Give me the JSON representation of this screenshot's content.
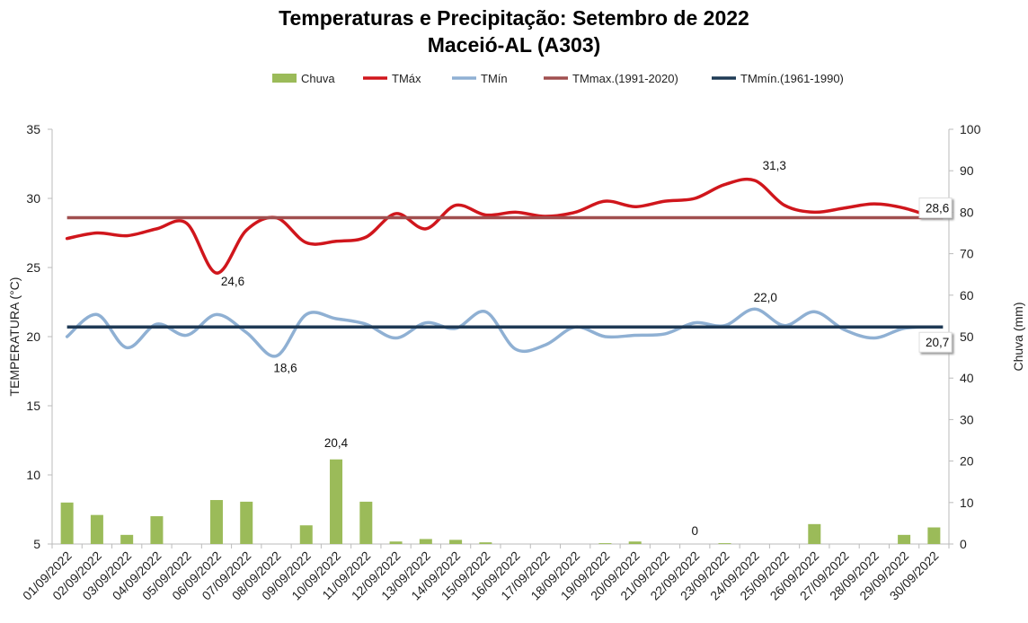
{
  "chart_data": {
    "type": "line+bar",
    "title": "Temperaturas e Precipitação: Setembro de 2022",
    "subtitle": "Maceió-AL (A303)",
    "ylabel": "TEMPERATURA (°C)",
    "y2label": "Chuva (mm)",
    "ylim": [
      5,
      35
    ],
    "yticks": [
      5,
      10,
      15,
      20,
      25,
      30,
      35
    ],
    "y2lim": [
      0,
      100
    ],
    "y2ticks": [
      0,
      10,
      20,
      30,
      40,
      50,
      60,
      70,
      80,
      90,
      100
    ],
    "grid": false,
    "legend_position": "top",
    "categories": [
      "01/09/2022",
      "02/09/2022",
      "03/09/2022",
      "04/09/2022",
      "05/09/2022",
      "06/09/2022",
      "07/09/2022",
      "08/09/2022",
      "09/09/2022",
      "10/09/2022",
      "11/09/2022",
      "12/09/2022",
      "13/09/2022",
      "14/09/2022",
      "15/09/2022",
      "16/09/2022",
      "17/09/2022",
      "18/09/2022",
      "19/09/2022",
      "20/09/2022",
      "21/09/2022",
      "22/09/2022",
      "23/09/2022",
      "24/09/2022",
      "25/09/2022",
      "26/09/2022",
      "27/09/2022",
      "28/09/2022",
      "29/09/2022",
      "30/09/2022"
    ],
    "series": [
      {
        "name": "Chuva",
        "type": "bar",
        "axis": "right",
        "color": "#9bbb59",
        "values": [
          10.0,
          7.0,
          2.2,
          6.7,
          0,
          10.6,
          10.2,
          0,
          4.5,
          20.4,
          10.2,
          0.6,
          1.2,
          1.0,
          0.4,
          0,
          0,
          0,
          0.2,
          0.6,
          0,
          0,
          0.2,
          0,
          0,
          4.8,
          0,
          0,
          2.2,
          4.0
        ]
      },
      {
        "name": "TMáx",
        "type": "line",
        "axis": "left",
        "color": "#d0161c",
        "values": [
          27.1,
          27.5,
          27.3,
          27.8,
          28.2,
          24.6,
          27.7,
          28.6,
          26.8,
          26.9,
          27.2,
          28.9,
          27.8,
          29.5,
          28.8,
          29.0,
          28.7,
          29.0,
          29.8,
          29.4,
          29.8,
          30.0,
          31.0,
          31.3,
          29.5,
          29.0,
          29.3,
          29.6,
          29.3,
          28.6
        ]
      },
      {
        "name": "TMín",
        "type": "line",
        "axis": "left",
        "color": "#8fb0d3",
        "values": [
          20.0,
          21.6,
          19.2,
          20.9,
          20.1,
          21.6,
          20.3,
          18.6,
          21.6,
          21.3,
          20.9,
          19.9,
          21.0,
          20.6,
          21.8,
          19.1,
          19.4,
          20.7,
          20.0,
          20.1,
          20.2,
          21.0,
          20.8,
          22.0,
          20.8,
          21.8,
          20.5,
          19.9,
          20.6,
          20.7
        ]
      },
      {
        "name": "TMmax.(1991-2020)",
        "type": "hline",
        "axis": "left",
        "color": "#a04f4f",
        "value": 28.6
      },
      {
        "name": "TMmín.(1961-1990)",
        "type": "hline",
        "axis": "left",
        "color": "#1f3a55",
        "value": 20.7
      }
    ],
    "annotations": [
      {
        "series": "TMáx",
        "category": "06/09/2022",
        "text": "24,6"
      },
      {
        "series": "TMín",
        "category": "08/09/2022",
        "text": "18,6"
      },
      {
        "series": "Chuva",
        "category": "10/09/2022",
        "text": "20,4"
      },
      {
        "series": "Chuva",
        "category": "22/09/2022",
        "text": "0"
      },
      {
        "series": "TMáx",
        "category": "24/09/2022",
        "text": "31,3"
      },
      {
        "series": "TMín",
        "category": "24/09/2022",
        "text": "22,0"
      },
      {
        "series": "TMáx",
        "category": "30/09/2022",
        "text": "28,6"
      },
      {
        "series": "TMín",
        "category": "30/09/2022",
        "text": "20,7"
      }
    ]
  }
}
